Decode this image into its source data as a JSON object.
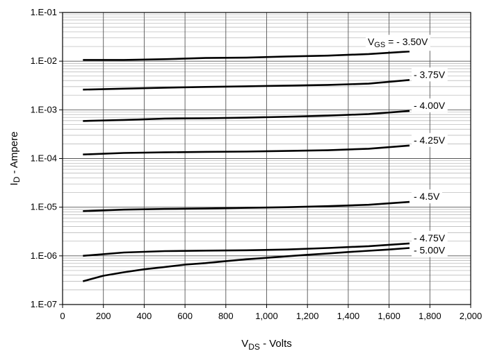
{
  "chart_data": {
    "type": "line",
    "title": "",
    "xlabel_main": "V",
    "xlabel_sub": "DS",
    "xlabel_rest": " - Volts",
    "ylabel_main": "I",
    "ylabel_sub": "D",
    "ylabel_rest": " - Ampere",
    "xlim": [
      0,
      2000
    ],
    "ylim": [
      1e-07,
      0.1
    ],
    "yscale": "log",
    "grid": true,
    "x_ticks": [
      0,
      200,
      400,
      600,
      800,
      1000,
      1200,
      1400,
      1600,
      1800,
      2000
    ],
    "x_tick_labels": [
      "0",
      "200",
      "400",
      "600",
      "800",
      "1,000",
      "1,200",
      "1,400",
      "1,600",
      "1,800",
      "2,000"
    ],
    "y_ticks": [
      1e-07,
      1e-06,
      1e-05,
      0.0001,
      0.001,
      0.01,
      0.1
    ],
    "y_tick_labels": [
      "1.E-07",
      "1.E-06",
      "1.E-05",
      "1.E-04",
      "1.E-03",
      "1.E-02",
      "1.E-01"
    ],
    "series": [
      {
        "name": "- 3.50V",
        "label_prefix": "V",
        "label_sub": "GS",
        "label_rest": " = - 3.50V",
        "x": [
          100,
          300,
          500,
          700,
          900,
          1100,
          1300,
          1500,
          1700
        ],
        "y": [
          0.0106,
          0.0106,
          0.011,
          0.0116,
          0.0118,
          0.0125,
          0.013,
          0.014,
          0.0158
        ]
      },
      {
        "name": "- 3.75V",
        "x": [
          100,
          300,
          500,
          700,
          900,
          1100,
          1300,
          1500,
          1700
        ],
        "y": [
          0.0026,
          0.00272,
          0.00285,
          0.00296,
          0.00305,
          0.00315,
          0.00325,
          0.00345,
          0.0041
        ]
      },
      {
        "name": "- 4.00V",
        "x": [
          100,
          300,
          500,
          700,
          900,
          1100,
          1300,
          1500,
          1700
        ],
        "y": [
          0.00059,
          0.00062,
          0.00066,
          0.00067,
          0.00069,
          0.00072,
          0.00076,
          0.00082,
          0.00095
        ]
      },
      {
        "name": "- 4.25V",
        "x": [
          100,
          300,
          500,
          700,
          900,
          1100,
          1300,
          1500,
          1700
        ],
        "y": [
          0.000121,
          0.00013,
          0.000134,
          0.000137,
          0.000139,
          0.000143,
          0.000148,
          0.000159,
          0.000185
        ]
      },
      {
        "name": "- 4.5V",
        "x": [
          100,
          300,
          500,
          700,
          900,
          1100,
          1300,
          1500,
          1700
        ],
        "y": [
          8.3e-06,
          8.9e-06,
          9.2e-06,
          9.4e-06,
          9.7e-06,
          1e-05,
          1.05e-05,
          1.12e-05,
          1.28e-05
        ]
      },
      {
        "name": "- 4.75V",
        "x": [
          100,
          300,
          500,
          700,
          900,
          1100,
          1300,
          1500,
          1700
        ],
        "y": [
          1e-06,
          1.17e-06,
          1.25e-06,
          1.28e-06,
          1.3e-06,
          1.35e-06,
          1.45e-06,
          1.58e-06,
          1.8e-06
        ]
      },
      {
        "name": "- 5.00V",
        "x": [
          100,
          200,
          300,
          400,
          500,
          600,
          700,
          800,
          900,
          1000,
          1100,
          1200,
          1300,
          1400,
          1500,
          1600,
          1700
        ],
        "y": [
          3e-07,
          3.9e-07,
          4.6e-07,
          5.3e-07,
          5.9e-07,
          6.6e-07,
          7.1e-07,
          7.8e-07,
          8.5e-07,
          9.1e-07,
          9.8e-07,
          1.05e-06,
          1.12e-06,
          1.2e-06,
          1.27e-06,
          1.35e-06,
          1.45e-06
        ]
      }
    ]
  }
}
